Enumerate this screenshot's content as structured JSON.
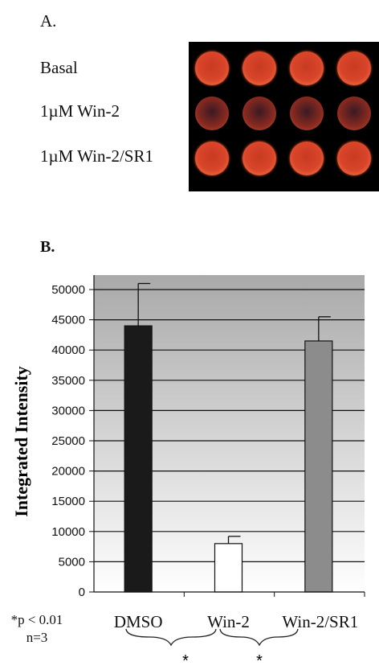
{
  "panel_a": {
    "label": "A.",
    "rows": [
      {
        "label": "Basal",
        "intensity": "bright",
        "color": "#d9452a"
      },
      {
        "label": "1µM Win-2",
        "intensity": "dim",
        "color": "#8a2a20"
      },
      {
        "label": "1µM Win-2/SR1",
        "intensity": "bright",
        "color": "#d9452a"
      }
    ],
    "wells_per_row": 4,
    "plate_background": "#000000"
  },
  "panel_b": {
    "label": "B."
  },
  "chart_data": {
    "type": "bar",
    "categories": [
      "DMSO",
      "Win-2",
      "Win-2/SR1"
    ],
    "values": [
      44000,
      8000,
      41500
    ],
    "errors": [
      7000,
      1200,
      4000
    ],
    "bar_colors": [
      "#1a1a1a",
      "#ffffff",
      "#8c8c8c"
    ],
    "ylabel": "Integrated Intensity",
    "xlabel": "",
    "ylim": [
      0,
      50000
    ],
    "yticks": [
      0,
      5000,
      10000,
      15000,
      20000,
      25000,
      30000,
      35000,
      40000,
      45000,
      50000
    ],
    "grid": true,
    "background": "gray-gradient",
    "significance_marks": [
      "*",
      "*"
    ]
  },
  "footnote": {
    "pvalue": "*p < 0.01",
    "n": "n=3"
  }
}
